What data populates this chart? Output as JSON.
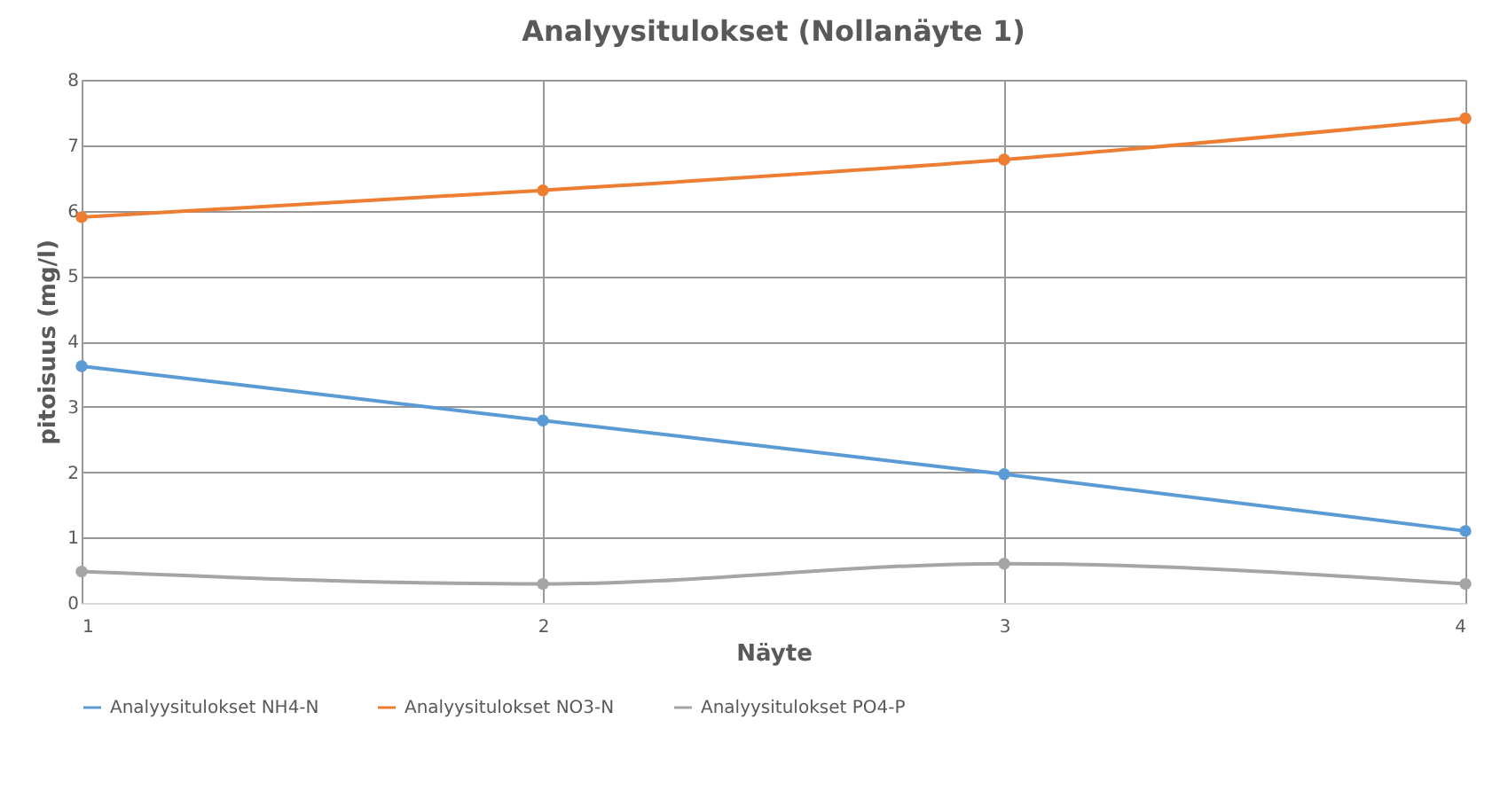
{
  "chart_data": {
    "type": "line",
    "title": "Analyysitulokset (Nollanäyte 1)",
    "xlabel": "Näyte",
    "ylabel": "pitoisuus (mg/l)",
    "x": [
      1,
      2,
      3,
      4
    ],
    "xlim": [
      1,
      4
    ],
    "xticks": [
      1,
      2,
      3,
      4
    ],
    "ylim": [
      0,
      8
    ],
    "yticks": [
      0,
      1,
      2,
      3,
      4,
      5,
      6,
      7,
      8
    ],
    "grid": true,
    "legend": "bottom",
    "marker": "circle",
    "series": [
      {
        "name": "Analyysitulokset NH4-N",
        "color": "#5b9bd5",
        "values": [
          3.62,
          2.79,
          1.97,
          1.1
        ]
      },
      {
        "name": "Analyysitulokset NO3-N",
        "color": "#ed7d31",
        "values": [
          5.9,
          6.31,
          6.78,
          7.41
        ]
      },
      {
        "name": "Analyysitulokset PO4-P",
        "color": "#a5a5a5",
        "values": [
          0.48,
          0.29,
          0.6,
          0.29
        ]
      }
    ]
  }
}
